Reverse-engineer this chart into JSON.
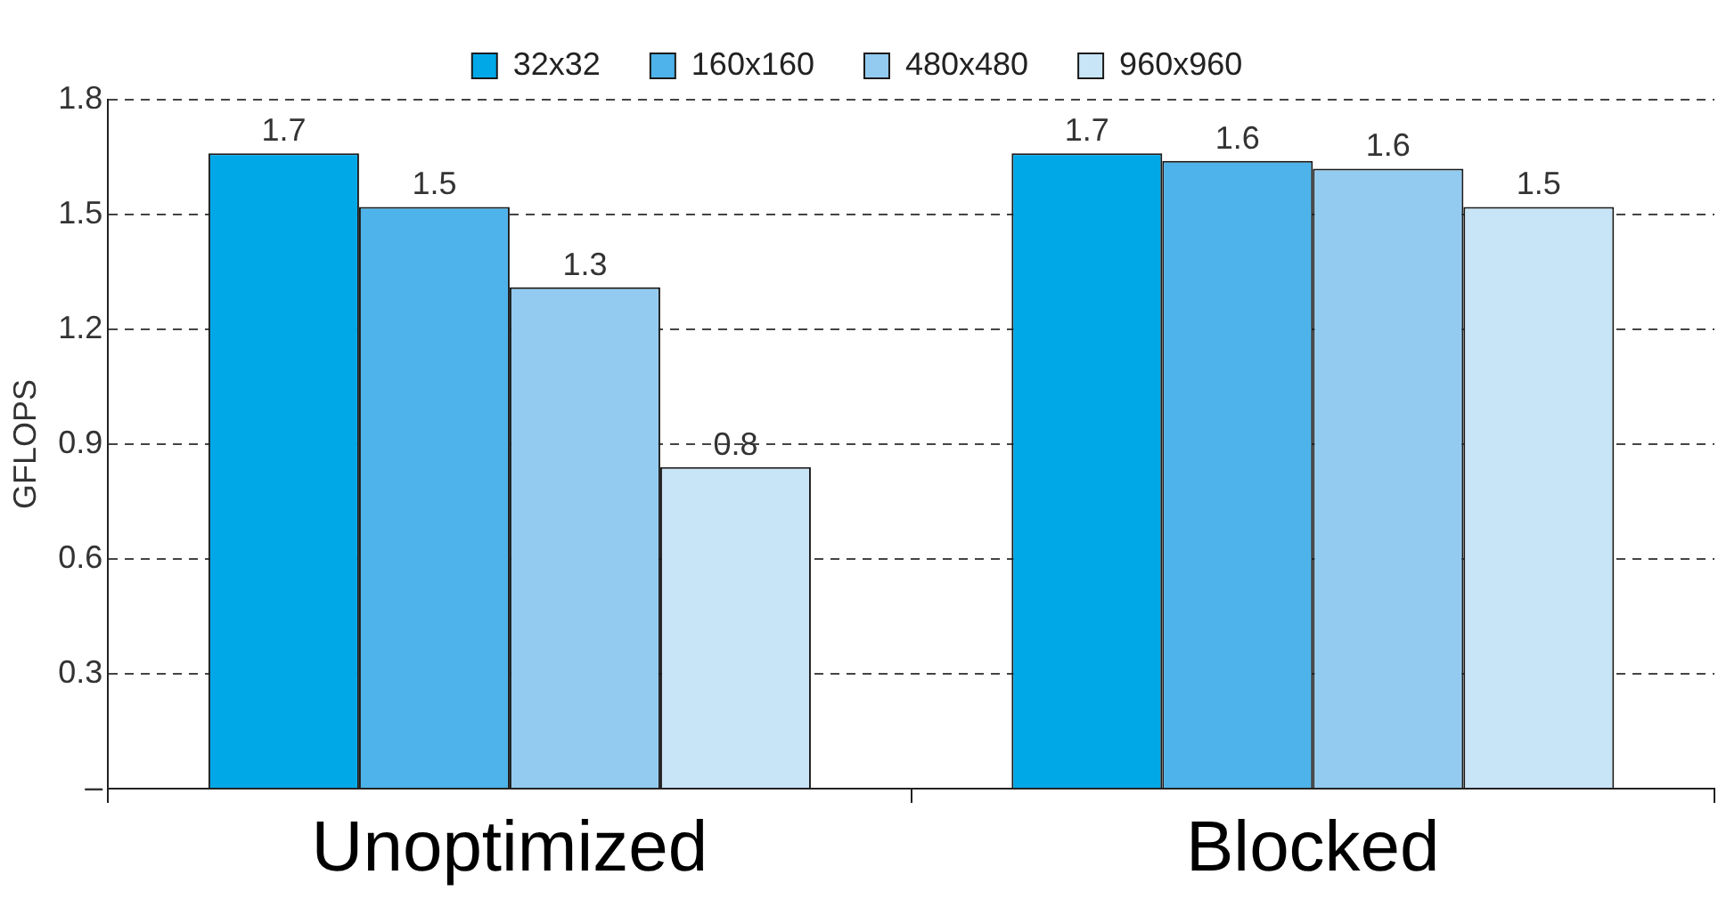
{
  "chart_data": {
    "type": "bar",
    "ylabel": "GFLOPS",
    "categories": [
      "Unoptimized",
      "Blocked"
    ],
    "series": [
      {
        "name": "32x32",
        "color": "#00a8e8",
        "values": [
          1.66,
          1.66
        ],
        "value_labels": [
          "1.7",
          "1.7"
        ]
      },
      {
        "name": "160x160",
        "color": "#4db3ea",
        "values": [
          1.52,
          1.64
        ],
        "value_labels": [
          "1.5",
          "1.6"
        ]
      },
      {
        "name": "480x480",
        "color": "#93cbf0",
        "values": [
          1.31,
          1.62
        ],
        "value_labels": [
          "1.3",
          "1.6"
        ]
      },
      {
        "name": "960x960",
        "color": "#c8e4f7",
        "values": [
          0.84,
          1.52
        ],
        "value_labels": [
          "0.8",
          "1.5"
        ]
      }
    ],
    "ylim": [
      0,
      1.8
    ],
    "yticks": [
      {
        "value": 0,
        "label": "–"
      },
      0.3,
      0.6,
      0.9,
      1.2,
      1.5,
      1.8
    ],
    "grid": "y",
    "legend": "top"
  }
}
